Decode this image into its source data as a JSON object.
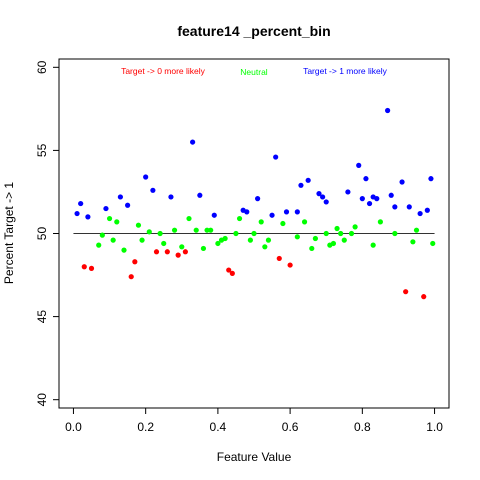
{
  "chart_data": {
    "type": "scatter",
    "title": "feature14 _percent_bin",
    "xlabel": "Feature Value",
    "ylabel": "Percent Target -> 1",
    "xlim": [
      -0.04,
      1.04
    ],
    "ylim": [
      39.5,
      60.5
    ],
    "x_ticks": [
      0.0,
      0.2,
      0.4,
      0.6,
      0.8,
      1.0
    ],
    "x_tick_labels": [
      "0.0",
      "0.2",
      "0.4",
      "0.6",
      "0.8",
      "1.0"
    ],
    "y_ticks": [
      40,
      45,
      50,
      55,
      60
    ],
    "y_tick_labels": [
      "40",
      "45",
      "50",
      "55",
      "60"
    ],
    "reference_line": 50,
    "legend_position": "top",
    "colors": {
      "red": "#ff0000",
      "green": "#00ff00",
      "blue": "#0000ff",
      "line": "#333333"
    },
    "series": [
      {
        "name": "Target -> 0 more likely",
        "color": "#ff0000",
        "points": [
          [
            0.03,
            48.0
          ],
          [
            0.05,
            47.9
          ],
          [
            0.16,
            47.4
          ],
          [
            0.17,
            48.3
          ],
          [
            0.23,
            48.9
          ],
          [
            0.26,
            48.9
          ],
          [
            0.29,
            48.7
          ],
          [
            0.31,
            48.9
          ],
          [
            0.43,
            47.8
          ],
          [
            0.44,
            47.6
          ],
          [
            0.57,
            48.5
          ],
          [
            0.6,
            48.1
          ],
          [
            0.92,
            46.5
          ],
          [
            0.97,
            46.2
          ]
        ]
      },
      {
        "name": "Neutral",
        "color": "#00ff00",
        "points": [
          [
            0.07,
            49.3
          ],
          [
            0.08,
            49.9
          ],
          [
            0.1,
            50.9
          ],
          [
            0.11,
            49.6
          ],
          [
            0.12,
            50.7
          ],
          [
            0.14,
            49.0
          ],
          [
            0.18,
            50.5
          ],
          [
            0.19,
            49.6
          ],
          [
            0.21,
            50.1
          ],
          [
            0.24,
            50.0
          ],
          [
            0.25,
            49.4
          ],
          [
            0.28,
            50.2
          ],
          [
            0.3,
            49.2
          ],
          [
            0.32,
            50.9
          ],
          [
            0.34,
            50.2
          ],
          [
            0.36,
            49.1
          ],
          [
            0.37,
            50.2
          ],
          [
            0.38,
            50.2
          ],
          [
            0.4,
            49.4
          ],
          [
            0.41,
            49.6
          ],
          [
            0.42,
            49.7
          ],
          [
            0.45,
            50.0
          ],
          [
            0.46,
            50.9
          ],
          [
            0.49,
            49.6
          ],
          [
            0.5,
            50.0
          ],
          [
            0.52,
            50.7
          ],
          [
            0.53,
            49.2
          ],
          [
            0.54,
            49.6
          ],
          [
            0.58,
            50.6
          ],
          [
            0.62,
            49.8
          ],
          [
            0.64,
            50.7
          ],
          [
            0.66,
            49.1
          ],
          [
            0.67,
            49.7
          ],
          [
            0.7,
            50.0
          ],
          [
            0.71,
            49.3
          ],
          [
            0.72,
            49.4
          ],
          [
            0.73,
            50.3
          ],
          [
            0.74,
            50.0
          ],
          [
            0.75,
            49.6
          ],
          [
            0.77,
            50.0
          ],
          [
            0.78,
            50.4
          ],
          [
            0.83,
            49.3
          ],
          [
            0.85,
            50.7
          ],
          [
            0.89,
            50.0
          ],
          [
            0.94,
            49.5
          ],
          [
            0.95,
            50.2
          ],
          [
            0.995,
            49.4
          ]
        ]
      },
      {
        "name": "Target -> 1 more likely",
        "color": "#0000ff",
        "points": [
          [
            0.01,
            51.2
          ],
          [
            0.02,
            51.8
          ],
          [
            0.04,
            51.0
          ],
          [
            0.09,
            51.5
          ],
          [
            0.13,
            52.2
          ],
          [
            0.15,
            51.7
          ],
          [
            0.2,
            53.4
          ],
          [
            0.22,
            52.6
          ],
          [
            0.27,
            52.2
          ],
          [
            0.33,
            55.5
          ],
          [
            0.35,
            52.3
          ],
          [
            0.39,
            51.1
          ],
          [
            0.47,
            51.4
          ],
          [
            0.48,
            51.3
          ],
          [
            0.51,
            52.1
          ],
          [
            0.55,
            51.1
          ],
          [
            0.56,
            54.6
          ],
          [
            0.59,
            51.3
          ],
          [
            0.62,
            51.3
          ],
          [
            0.63,
            52.9
          ],
          [
            0.65,
            53.2
          ],
          [
            0.68,
            52.4
          ],
          [
            0.69,
            52.2
          ],
          [
            0.7,
            51.9
          ],
          [
            0.76,
            52.5
          ],
          [
            0.79,
            54.1
          ],
          [
            0.8,
            52.1
          ],
          [
            0.81,
            53.3
          ],
          [
            0.82,
            51.8
          ],
          [
            0.83,
            52.2
          ],
          [
            0.84,
            52.1
          ],
          [
            0.87,
            57.4
          ],
          [
            0.88,
            52.3
          ],
          [
            0.89,
            51.6
          ],
          [
            0.91,
            53.1
          ],
          [
            0.93,
            51.6
          ],
          [
            0.96,
            51.2
          ],
          [
            0.98,
            51.4
          ],
          [
            0.99,
            53.3
          ]
        ]
      }
    ]
  }
}
